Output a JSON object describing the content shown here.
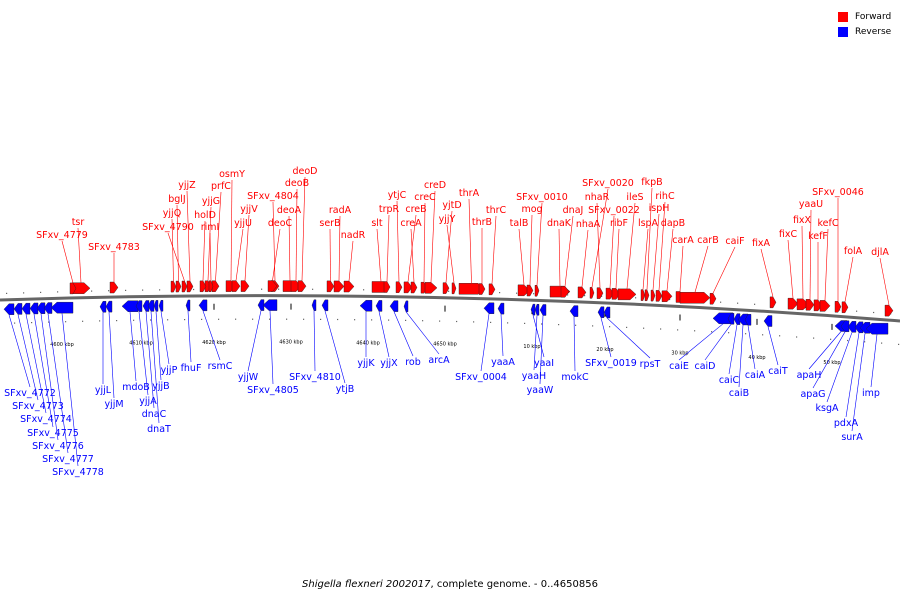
{
  "legend": {
    "forward_label": "Forward",
    "forward_color": "#ff0000",
    "reverse_label": "Reverse",
    "reverse_color": "#0000ff"
  },
  "caption": {
    "organism": "Shigella flexneri 2002017",
    "rest": ", complete genome. - 0..4650856"
  },
  "colors": {
    "backbone": "#666666",
    "tick": "#000000"
  },
  "ticks": [
    {
      "label": "4600 kbp"
    },
    {
      "label": "4610 kbp"
    },
    {
      "label": "4620 kbp"
    },
    {
      "label": "4630 kbp"
    },
    {
      "label": "4640 kbp"
    },
    {
      "label": "4650 kbp"
    },
    {
      "label": "10 kbp"
    },
    {
      "label": "20 kbp"
    },
    {
      "label": "30 kbp"
    },
    {
      "label": "40 kbp"
    },
    {
      "label": "50 kbp"
    }
  ],
  "forward_genes": [
    {
      "name": "tsr"
    },
    {
      "name": "SFxv_4779"
    },
    {
      "name": "SFxv_4783"
    },
    {
      "name": "yjjZ"
    },
    {
      "name": "bglJ"
    },
    {
      "name": "yjjQ"
    },
    {
      "name": "SFxv_4790"
    },
    {
      "name": "prfC"
    },
    {
      "name": "osmY"
    },
    {
      "name": "yjjG"
    },
    {
      "name": "holD"
    },
    {
      "name": "rimI"
    },
    {
      "name": "yjjV"
    },
    {
      "name": "yjjU"
    },
    {
      "name": "SFxv_4804"
    },
    {
      "name": "deoC"
    },
    {
      "name": "deoA"
    },
    {
      "name": "deoB"
    },
    {
      "name": "deoD"
    },
    {
      "name": "radA"
    },
    {
      "name": "serB"
    },
    {
      "name": "nadR"
    },
    {
      "name": "slt"
    },
    {
      "name": "trpR"
    },
    {
      "name": "ytjC"
    },
    {
      "name": "creB"
    },
    {
      "name": "creA"
    },
    {
      "name": "creC"
    },
    {
      "name": "creD"
    },
    {
      "name": "yjtD"
    },
    {
      "name": "yjjY"
    },
    {
      "name": "thrA"
    },
    {
      "name": "thrB"
    },
    {
      "name": "thrC"
    },
    {
      "name": "talB"
    },
    {
      "name": "mog"
    },
    {
      "name": "SFxv_0010"
    },
    {
      "name": "dnaK"
    },
    {
      "name": "dnaJ"
    },
    {
      "name": "nhaA"
    },
    {
      "name": "SFxv_0020"
    },
    {
      "name": "nhaR"
    },
    {
      "name": "SFxv_0022"
    },
    {
      "name": "ribF"
    },
    {
      "name": "ileS"
    },
    {
      "name": "lspA"
    },
    {
      "name": "fkpB"
    },
    {
      "name": "ispH"
    },
    {
      "name": "rihC"
    },
    {
      "name": "dapB"
    },
    {
      "name": "carA"
    },
    {
      "name": "carB"
    },
    {
      "name": "caiF"
    },
    {
      "name": "fixA"
    },
    {
      "name": "fixC"
    },
    {
      "name": "fixX"
    },
    {
      "name": "yaaU"
    },
    {
      "name": "kefF"
    },
    {
      "name": "kefC"
    },
    {
      "name": "SFxv_0046"
    },
    {
      "name": "folA"
    },
    {
      "name": "djlA"
    }
  ],
  "reverse_genes": [
    {
      "name": "SFxv_4772"
    },
    {
      "name": "SFxv_4773"
    },
    {
      "name": "SFxv_4774"
    },
    {
      "name": "SFxv_4775"
    },
    {
      "name": "SFxv_4776"
    },
    {
      "name": "SFxv_4777"
    },
    {
      "name": "SFxv_4778"
    },
    {
      "name": "yjjL"
    },
    {
      "name": "yjjM"
    },
    {
      "name": "mdoB"
    },
    {
      "name": "yjjA"
    },
    {
      "name": "dnaC"
    },
    {
      "name": "dnaT"
    },
    {
      "name": "yjjB"
    },
    {
      "name": "yjjP"
    },
    {
      "name": "fhuF"
    },
    {
      "name": "rsmC"
    },
    {
      "name": "yjjW"
    },
    {
      "name": "SFxv_4805"
    },
    {
      "name": "SFxv_4810"
    },
    {
      "name": "ytjB"
    },
    {
      "name": "yjjK"
    },
    {
      "name": "yjjX"
    },
    {
      "name": "rob"
    },
    {
      "name": "arcA"
    },
    {
      "name": "yaaA"
    },
    {
      "name": "SFxv_0004"
    },
    {
      "name": "yaaI"
    },
    {
      "name": "yaaH"
    },
    {
      "name": "yaaW"
    },
    {
      "name": "mokC"
    },
    {
      "name": "SFxv_0019"
    },
    {
      "name": "rpsT"
    },
    {
      "name": "caiE"
    },
    {
      "name": "caiD"
    },
    {
      "name": "caiC"
    },
    {
      "name": "caiB"
    },
    {
      "name": "caiA"
    },
    {
      "name": "caiT"
    },
    {
      "name": "apaH"
    },
    {
      "name": "apaG"
    },
    {
      "name": "ksgA"
    },
    {
      "name": "pdxA"
    },
    {
      "name": "surA"
    },
    {
      "name": "imp"
    }
  ]
}
